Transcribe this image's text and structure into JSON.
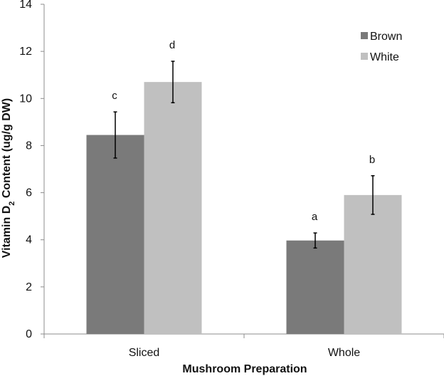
{
  "chart_data": {
    "type": "bar",
    "title": "",
    "xlabel": "Mushroom Preparation",
    "ylabel": {
      "prefix": "Vitamin D",
      "subscript": "2",
      "suffix": " Content (ug/g DW)"
    },
    "ylim": [
      0,
      14
    ],
    "yticks": [
      0,
      2,
      4,
      6,
      8,
      10,
      12,
      14
    ],
    "categories": [
      "Sliced",
      "Whole"
    ],
    "series": [
      {
        "name": "Brown",
        "color": "#7a7a7a",
        "values": [
          8.45,
          3.97
        ],
        "errors": [
          0.98,
          0.32
        ],
        "labels": [
          "c",
          "a"
        ]
      },
      {
        "name": "White",
        "color": "#c0c0c0",
        "values": [
          10.7,
          5.9
        ],
        "errors": [
          0.88,
          0.82
        ],
        "labels": [
          "d",
          "b"
        ]
      }
    ],
    "legend": {
      "position": "top-right"
    },
    "grid": false
  }
}
